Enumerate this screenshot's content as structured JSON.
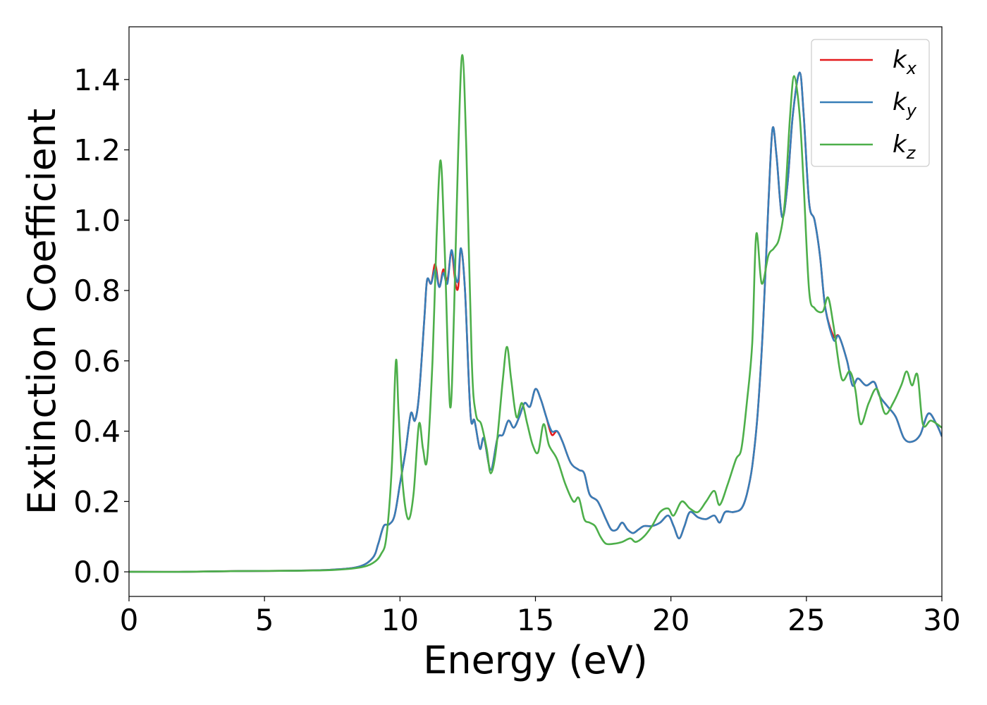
{
  "chart_data": {
    "type": "line",
    "title": "",
    "xlabel": "Energy (eV)",
    "ylabel": "Extinction Coefficient",
    "xlim": [
      0,
      30
    ],
    "ylim": [
      -0.07,
      1.55
    ],
    "xticks": [
      0,
      5,
      10,
      15,
      20,
      25,
      30
    ],
    "xtick_labels": [
      "0",
      "5",
      "10",
      "15",
      "20",
      "25",
      "30"
    ],
    "yticks": [
      0.0,
      0.2,
      0.4,
      0.6,
      0.8,
      1.0,
      1.2,
      1.4
    ],
    "ytick_labels": [
      "0.0",
      "0.2",
      "0.4",
      "0.6",
      "0.8",
      "1.0",
      "1.2",
      "1.4"
    ],
    "grid": false,
    "legend_position": "top-right",
    "series": [
      {
        "name": "k_x",
        "label_base": "k",
        "label_sub": "x",
        "color": "#e41a1c",
        "points": [
          [
            0,
            0.0
          ],
          [
            2,
            0.0
          ],
          [
            4,
            0.002
          ],
          [
            6,
            0.003
          ],
          [
            7.5,
            0.006
          ],
          [
            8.5,
            0.015
          ],
          [
            9.0,
            0.04
          ],
          [
            9.2,
            0.08
          ],
          [
            9.4,
            0.13
          ],
          [
            9.6,
            0.135
          ],
          [
            9.8,
            0.16
          ],
          [
            10.0,
            0.25
          ],
          [
            10.2,
            0.34
          ],
          [
            10.4,
            0.45
          ],
          [
            10.55,
            0.43
          ],
          [
            10.7,
            0.5
          ],
          [
            10.9,
            0.72
          ],
          [
            11.0,
            0.83
          ],
          [
            11.15,
            0.82
          ],
          [
            11.3,
            0.875
          ],
          [
            11.45,
            0.81
          ],
          [
            11.6,
            0.86
          ],
          [
            11.75,
            0.83
          ],
          [
            11.9,
            0.91
          ],
          [
            12.05,
            0.82
          ],
          [
            12.15,
            0.81
          ],
          [
            12.25,
            0.92
          ],
          [
            12.4,
            0.8
          ],
          [
            12.6,
            0.45
          ],
          [
            12.75,
            0.43
          ],
          [
            12.95,
            0.35
          ],
          [
            13.1,
            0.38
          ],
          [
            13.35,
            0.29
          ],
          [
            13.6,
            0.38
          ],
          [
            13.8,
            0.39
          ],
          [
            14.0,
            0.43
          ],
          [
            14.2,
            0.41
          ],
          [
            14.4,
            0.44
          ],
          [
            14.6,
            0.48
          ],
          [
            14.8,
            0.47
          ],
          [
            15.0,
            0.52
          ],
          [
            15.2,
            0.49
          ],
          [
            15.4,
            0.44
          ],
          [
            15.6,
            0.39
          ],
          [
            15.8,
            0.4
          ],
          [
            16.0,
            0.37
          ],
          [
            16.3,
            0.31
          ],
          [
            16.6,
            0.29
          ],
          [
            16.8,
            0.28
          ],
          [
            17.0,
            0.22
          ],
          [
            17.3,
            0.2
          ],
          [
            17.6,
            0.15
          ],
          [
            17.8,
            0.12
          ],
          [
            18.0,
            0.12
          ],
          [
            18.2,
            0.14
          ],
          [
            18.4,
            0.12
          ],
          [
            18.6,
            0.11
          ],
          [
            18.8,
            0.12
          ],
          [
            19.0,
            0.13
          ],
          [
            19.3,
            0.13
          ],
          [
            19.6,
            0.14
          ],
          [
            19.9,
            0.16
          ],
          [
            20.1,
            0.13
          ],
          [
            20.3,
            0.095
          ],
          [
            20.5,
            0.13
          ],
          [
            20.7,
            0.17
          ],
          [
            21.0,
            0.155
          ],
          [
            21.3,
            0.15
          ],
          [
            21.6,
            0.16
          ],
          [
            21.8,
            0.14
          ],
          [
            22.0,
            0.17
          ],
          [
            22.3,
            0.17
          ],
          [
            22.6,
            0.18
          ],
          [
            22.8,
            0.22
          ],
          [
            23.0,
            0.3
          ],
          [
            23.2,
            0.45
          ],
          [
            23.4,
            0.7
          ],
          [
            23.6,
            1.05
          ],
          [
            23.75,
            1.26
          ],
          [
            23.9,
            1.18
          ],
          [
            24.1,
            1.01
          ],
          [
            24.3,
            1.1
          ],
          [
            24.5,
            1.3
          ],
          [
            24.75,
            1.42
          ],
          [
            24.9,
            1.3
          ],
          [
            25.1,
            1.05
          ],
          [
            25.3,
            1.0
          ],
          [
            25.5,
            0.9
          ],
          [
            25.7,
            0.75
          ],
          [
            26.0,
            0.67
          ],
          [
            26.2,
            0.67
          ],
          [
            26.5,
            0.6
          ],
          [
            26.7,
            0.53
          ],
          [
            26.9,
            0.55
          ],
          [
            27.2,
            0.53
          ],
          [
            27.5,
            0.54
          ],
          [
            27.7,
            0.5
          ],
          [
            28.0,
            0.47
          ],
          [
            28.3,
            0.44
          ],
          [
            28.6,
            0.38
          ],
          [
            28.9,
            0.37
          ],
          [
            29.2,
            0.39
          ],
          [
            29.5,
            0.45
          ],
          [
            29.8,
            0.42
          ],
          [
            30.0,
            0.385
          ]
        ]
      },
      {
        "name": "k_y",
        "label_base": "k",
        "label_sub": "y",
        "color": "#377eb8",
        "points": [
          [
            0,
            0.0
          ],
          [
            2,
            0.0
          ],
          [
            4,
            0.002
          ],
          [
            6,
            0.003
          ],
          [
            7.5,
            0.006
          ],
          [
            8.5,
            0.015
          ],
          [
            9.0,
            0.04
          ],
          [
            9.2,
            0.08
          ],
          [
            9.4,
            0.13
          ],
          [
            9.6,
            0.135
          ],
          [
            9.8,
            0.16
          ],
          [
            10.0,
            0.25
          ],
          [
            10.2,
            0.34
          ],
          [
            10.4,
            0.45
          ],
          [
            10.55,
            0.43
          ],
          [
            10.7,
            0.5
          ],
          [
            10.9,
            0.72
          ],
          [
            11.0,
            0.83
          ],
          [
            11.15,
            0.82
          ],
          [
            11.3,
            0.86
          ],
          [
            11.45,
            0.81
          ],
          [
            11.6,
            0.85
          ],
          [
            11.75,
            0.82
          ],
          [
            11.9,
            0.915
          ],
          [
            12.05,
            0.84
          ],
          [
            12.15,
            0.83
          ],
          [
            12.25,
            0.92
          ],
          [
            12.4,
            0.8
          ],
          [
            12.6,
            0.45
          ],
          [
            12.75,
            0.43
          ],
          [
            12.95,
            0.35
          ],
          [
            13.1,
            0.38
          ],
          [
            13.35,
            0.29
          ],
          [
            13.6,
            0.38
          ],
          [
            13.8,
            0.39
          ],
          [
            14.0,
            0.43
          ],
          [
            14.2,
            0.41
          ],
          [
            14.4,
            0.44
          ],
          [
            14.6,
            0.48
          ],
          [
            14.8,
            0.47
          ],
          [
            15.0,
            0.52
          ],
          [
            15.2,
            0.49
          ],
          [
            15.4,
            0.44
          ],
          [
            15.6,
            0.4
          ],
          [
            15.8,
            0.4
          ],
          [
            16.0,
            0.37
          ],
          [
            16.3,
            0.31
          ],
          [
            16.6,
            0.29
          ],
          [
            16.8,
            0.28
          ],
          [
            17.0,
            0.22
          ],
          [
            17.3,
            0.2
          ],
          [
            17.6,
            0.15
          ],
          [
            17.8,
            0.12
          ],
          [
            18.0,
            0.12
          ],
          [
            18.2,
            0.14
          ],
          [
            18.4,
            0.12
          ],
          [
            18.6,
            0.11
          ],
          [
            18.8,
            0.12
          ],
          [
            19.0,
            0.13
          ],
          [
            19.3,
            0.13
          ],
          [
            19.6,
            0.14
          ],
          [
            19.9,
            0.16
          ],
          [
            20.1,
            0.13
          ],
          [
            20.3,
            0.095
          ],
          [
            20.5,
            0.13
          ],
          [
            20.7,
            0.17
          ],
          [
            21.0,
            0.155
          ],
          [
            21.3,
            0.15
          ],
          [
            21.6,
            0.16
          ],
          [
            21.8,
            0.14
          ],
          [
            22.0,
            0.17
          ],
          [
            22.3,
            0.17
          ],
          [
            22.6,
            0.18
          ],
          [
            22.8,
            0.22
          ],
          [
            23.0,
            0.3
          ],
          [
            23.2,
            0.45
          ],
          [
            23.4,
            0.7
          ],
          [
            23.6,
            1.05
          ],
          [
            23.75,
            1.26
          ],
          [
            23.9,
            1.18
          ],
          [
            24.1,
            1.01
          ],
          [
            24.3,
            1.1
          ],
          [
            24.5,
            1.3
          ],
          [
            24.75,
            1.42
          ],
          [
            24.9,
            1.3
          ],
          [
            25.1,
            1.05
          ],
          [
            25.3,
            1.0
          ],
          [
            25.5,
            0.9
          ],
          [
            25.7,
            0.75
          ],
          [
            26.0,
            0.66
          ],
          [
            26.2,
            0.67
          ],
          [
            26.5,
            0.6
          ],
          [
            26.7,
            0.53
          ],
          [
            26.9,
            0.55
          ],
          [
            27.2,
            0.53
          ],
          [
            27.5,
            0.54
          ],
          [
            27.7,
            0.5
          ],
          [
            28.0,
            0.47
          ],
          [
            28.3,
            0.44
          ],
          [
            28.6,
            0.38
          ],
          [
            28.9,
            0.37
          ],
          [
            29.2,
            0.39
          ],
          [
            29.5,
            0.45
          ],
          [
            29.8,
            0.42
          ],
          [
            30.0,
            0.385
          ]
        ]
      },
      {
        "name": "k_z",
        "label_base": "k",
        "label_sub": "z",
        "color": "#4daf4a",
        "points": [
          [
            0,
            0.0
          ],
          [
            2,
            0.0
          ],
          [
            4,
            0.002
          ],
          [
            6,
            0.003
          ],
          [
            7.5,
            0.005
          ],
          [
            8.5,
            0.012
          ],
          [
            9.0,
            0.025
          ],
          [
            9.3,
            0.05
          ],
          [
            9.5,
            0.1
          ],
          [
            9.7,
            0.3
          ],
          [
            9.85,
            0.6
          ],
          [
            9.95,
            0.45
          ],
          [
            10.1,
            0.25
          ],
          [
            10.3,
            0.15
          ],
          [
            10.5,
            0.22
          ],
          [
            10.7,
            0.42
          ],
          [
            10.85,
            0.35
          ],
          [
            11.0,
            0.32
          ],
          [
            11.2,
            0.6
          ],
          [
            11.35,
            0.95
          ],
          [
            11.5,
            1.17
          ],
          [
            11.65,
            0.92
          ],
          [
            11.85,
            0.47
          ],
          [
            12.0,
            0.75
          ],
          [
            12.15,
            1.2
          ],
          [
            12.3,
            1.47
          ],
          [
            12.45,
            1.2
          ],
          [
            12.65,
            0.6
          ],
          [
            12.8,
            0.45
          ],
          [
            13.0,
            0.42
          ],
          [
            13.2,
            0.35
          ],
          [
            13.35,
            0.28
          ],
          [
            13.55,
            0.35
          ],
          [
            13.8,
            0.55
          ],
          [
            13.95,
            0.64
          ],
          [
            14.1,
            0.55
          ],
          [
            14.3,
            0.44
          ],
          [
            14.5,
            0.48
          ],
          [
            14.7,
            0.42
          ],
          [
            14.9,
            0.36
          ],
          [
            15.1,
            0.34
          ],
          [
            15.3,
            0.42
          ],
          [
            15.5,
            0.36
          ],
          [
            15.8,
            0.32
          ],
          [
            16.1,
            0.25
          ],
          [
            16.4,
            0.2
          ],
          [
            16.6,
            0.21
          ],
          [
            16.8,
            0.15
          ],
          [
            17.0,
            0.14
          ],
          [
            17.2,
            0.13
          ],
          [
            17.4,
            0.1
          ],
          [
            17.6,
            0.08
          ],
          [
            17.9,
            0.08
          ],
          [
            18.2,
            0.085
          ],
          [
            18.5,
            0.095
          ],
          [
            18.7,
            0.085
          ],
          [
            19.0,
            0.1
          ],
          [
            19.3,
            0.13
          ],
          [
            19.6,
            0.17
          ],
          [
            19.9,
            0.18
          ],
          [
            20.1,
            0.16
          ],
          [
            20.4,
            0.2
          ],
          [
            20.7,
            0.18
          ],
          [
            21.0,
            0.17
          ],
          [
            21.3,
            0.2
          ],
          [
            21.6,
            0.23
          ],
          [
            21.8,
            0.19
          ],
          [
            22.1,
            0.25
          ],
          [
            22.4,
            0.32
          ],
          [
            22.6,
            0.35
          ],
          [
            22.8,
            0.48
          ],
          [
            23.0,
            0.65
          ],
          [
            23.15,
            0.96
          ],
          [
            23.35,
            0.82
          ],
          [
            23.6,
            0.9
          ],
          [
            23.8,
            0.92
          ],
          [
            24.0,
            0.95
          ],
          [
            24.2,
            1.05
          ],
          [
            24.4,
            1.3
          ],
          [
            24.55,
            1.41
          ],
          [
            24.75,
            1.3
          ],
          [
            24.9,
            1.1
          ],
          [
            25.1,
            0.8
          ],
          [
            25.3,
            0.75
          ],
          [
            25.6,
            0.74
          ],
          [
            25.8,
            0.78
          ],
          [
            26.0,
            0.7
          ],
          [
            26.3,
            0.55
          ],
          [
            26.6,
            0.57
          ],
          [
            26.8,
            0.52
          ],
          [
            27.0,
            0.42
          ],
          [
            27.3,
            0.48
          ],
          [
            27.6,
            0.52
          ],
          [
            27.9,
            0.45
          ],
          [
            28.2,
            0.48
          ],
          [
            28.5,
            0.53
          ],
          [
            28.7,
            0.57
          ],
          [
            28.9,
            0.53
          ],
          [
            29.1,
            0.56
          ],
          [
            29.3,
            0.42
          ],
          [
            29.6,
            0.43
          ],
          [
            30.0,
            0.41
          ]
        ]
      }
    ]
  }
}
